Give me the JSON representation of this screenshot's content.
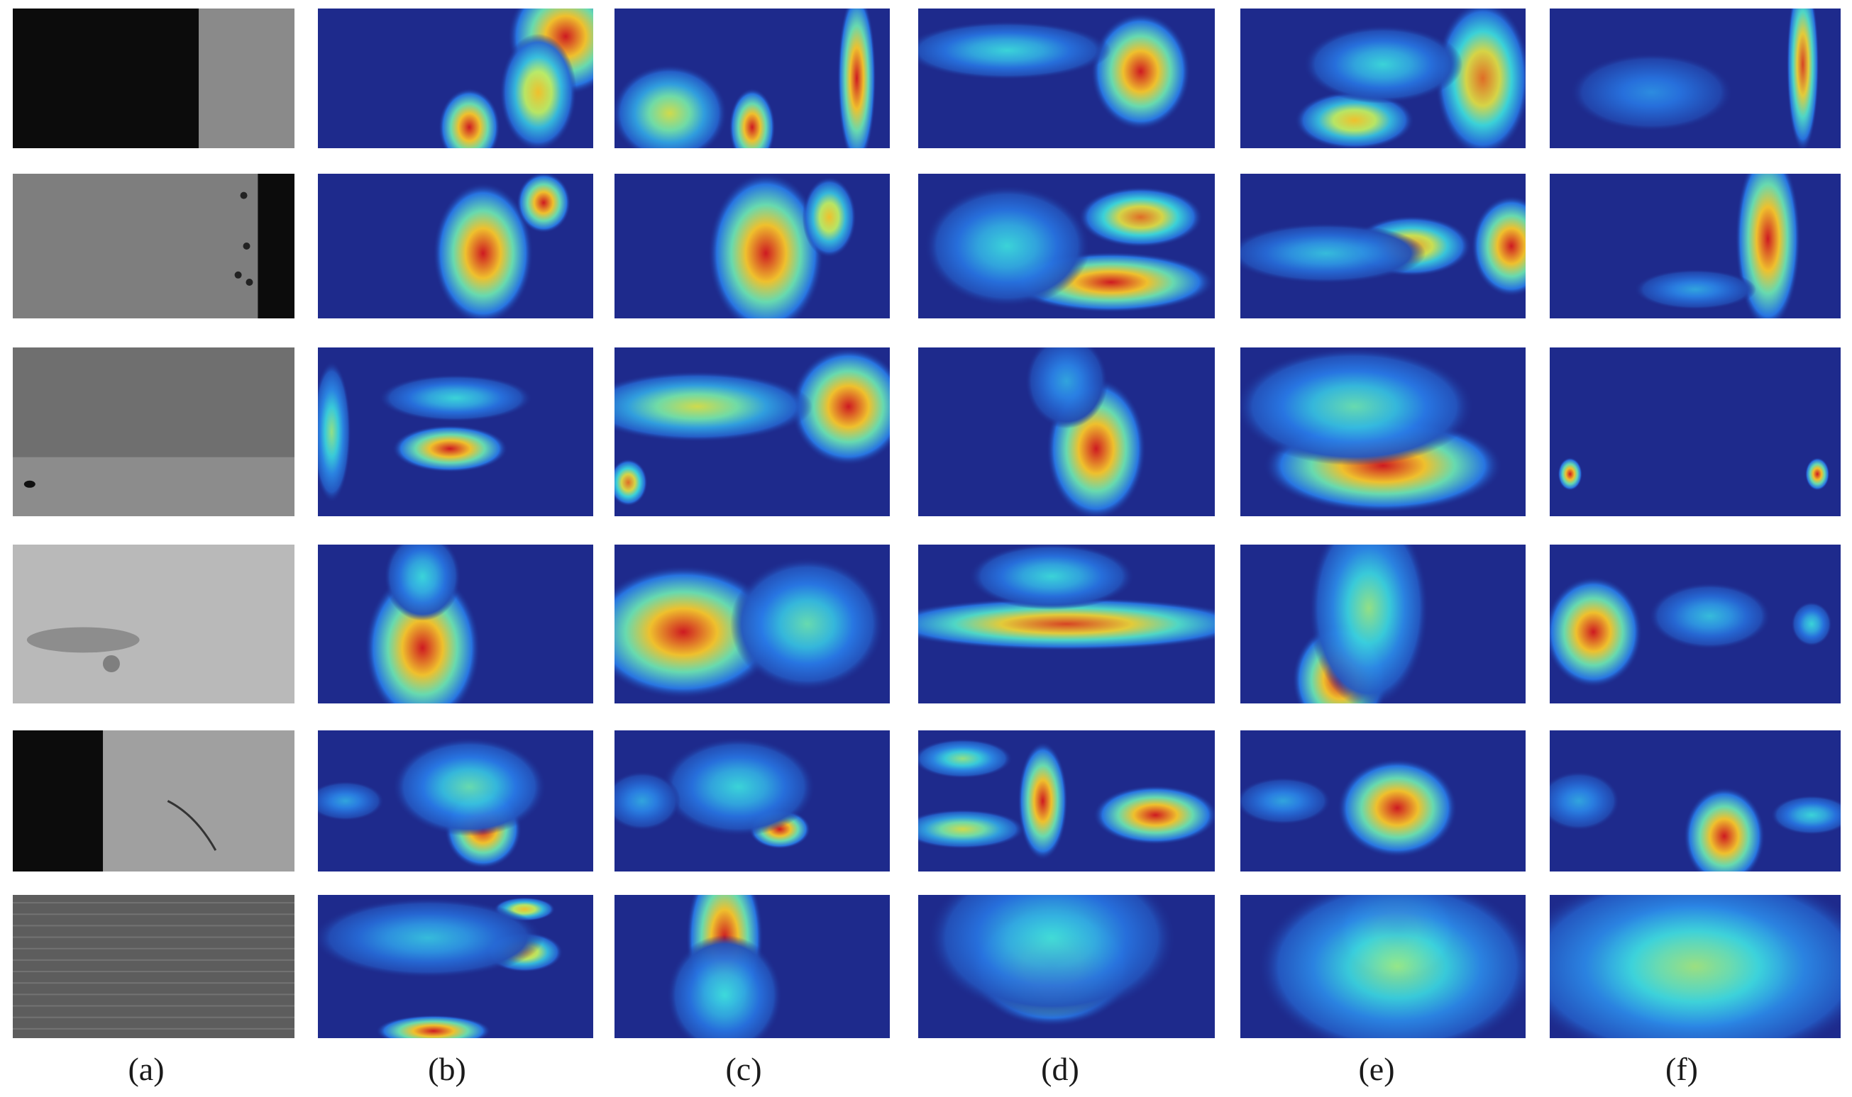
{
  "figure": {
    "column_labels": [
      "(a)",
      "(b)",
      "(c)",
      "(d)",
      "(e)",
      "(f)"
    ],
    "colors": {
      "background": "#ffffff",
      "heatmap_low": "#1e2a8c",
      "heatmap_high": "#d7191c"
    }
  }
}
